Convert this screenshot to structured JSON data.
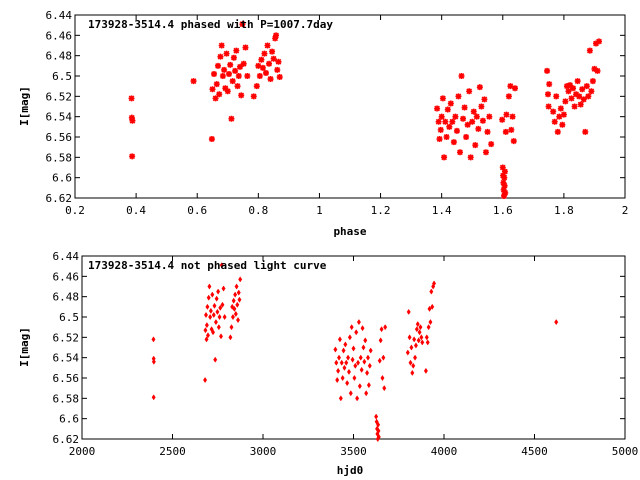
{
  "chart_data": [
    {
      "type": "scatter",
      "title": "173928-3514.4 phased with P=1007.7day",
      "xlabel": "phase",
      "ylabel": "I[mag]",
      "xlim": [
        0.2,
        2.0
      ],
      "ylim": [
        6.62,
        6.44
      ],
      "y_inverted": true,
      "grid": false,
      "marker_color": "#ff0000",
      "xticks": [
        "0.2",
        "0.4",
        "0.6",
        "0.8",
        "1",
        "1.2",
        "1.4",
        "1.6",
        "1.8",
        "2"
      ],
      "yticks": [
        "6.44",
        "6.46",
        "6.48",
        "6.5",
        "6.52",
        "6.54",
        "6.56",
        "6.58",
        "6.6",
        "6.62"
      ],
      "points": [
        [
          0.385,
          6.522
        ],
        [
          0.386,
          6.541
        ],
        [
          0.388,
          6.544
        ],
        [
          0.387,
          6.579
        ],
        [
          0.588,
          6.505
        ],
        [
          0.648,
          6.562
        ],
        [
          0.65,
          6.513
        ],
        [
          0.655,
          6.498
        ],
        [
          0.66,
          6.522
        ],
        [
          0.664,
          6.508
        ],
        [
          0.668,
          6.49
        ],
        [
          0.672,
          6.518
        ],
        [
          0.676,
          6.481
        ],
        [
          0.68,
          6.47
        ],
        [
          0.684,
          6.5
        ],
        [
          0.688,
          6.494
        ],
        [
          0.692,
          6.512
        ],
        [
          0.696,
          6.478
        ],
        [
          0.7,
          6.515
        ],
        [
          0.704,
          6.498
        ],
        [
          0.708,
          6.489
        ],
        [
          0.712,
          6.542
        ],
        [
          0.716,
          6.505
        ],
        [
          0.72,
          6.482
        ],
        [
          0.724,
          6.495
        ],
        [
          0.728,
          6.475
        ],
        [
          0.732,
          6.51
        ],
        [
          0.736,
          6.5
        ],
        [
          0.74,
          6.491
        ],
        [
          0.744,
          6.519
        ],
        [
          0.748,
          6.449
        ],
        [
          0.752,
          6.488
        ],
        [
          0.758,
          6.472
        ],
        [
          0.764,
          6.5
        ],
        [
          0.785,
          6.52
        ],
        [
          0.795,
          6.51
        ],
        [
          0.8,
          6.49
        ],
        [
          0.805,
          6.5
        ],
        [
          0.81,
          6.484
        ],
        [
          0.815,
          6.492
        ],
        [
          0.82,
          6.478
        ],
        [
          0.825,
          6.497
        ],
        [
          0.83,
          6.47
        ],
        [
          0.835,
          6.488
        ],
        [
          0.84,
          6.503
        ],
        [
          0.845,
          6.476
        ],
        [
          0.85,
          6.483
        ],
        [
          0.855,
          6.463
        ],
        [
          0.858,
          6.46
        ],
        [
          0.862,
          6.494
        ],
        [
          0.866,
          6.486
        ],
        [
          0.87,
          6.501
        ],
        [
          1.385,
          6.532
        ],
        [
          1.39,
          6.545
        ],
        [
          1.393,
          6.562
        ],
        [
          1.397,
          6.553
        ],
        [
          1.4,
          6.54
        ],
        [
          1.404,
          6.522
        ],
        [
          1.408,
          6.58
        ],
        [
          1.412,
          6.545
        ],
        [
          1.416,
          6.56
        ],
        [
          1.42,
          6.533
        ],
        [
          1.425,
          6.55
        ],
        [
          1.43,
          6.527
        ],
        [
          1.435,
          6.545
        ],
        [
          1.44,
          6.565
        ],
        [
          1.445,
          6.54
        ],
        [
          1.45,
          6.554
        ],
        [
          1.455,
          6.52
        ],
        [
          1.46,
          6.575
        ],
        [
          1.465,
          6.5
        ],
        [
          1.47,
          6.542
        ],
        [
          1.475,
          6.531
        ],
        [
          1.48,
          6.56
        ],
        [
          1.485,
          6.548
        ],
        [
          1.49,
          6.515
        ],
        [
          1.495,
          6.58
        ],
        [
          1.5,
          6.545
        ],
        [
          1.505,
          6.535
        ],
        [
          1.51,
          6.568
        ],
        [
          1.515,
          6.54
        ],
        [
          1.52,
          6.552
        ],
        [
          1.525,
          6.511
        ],
        [
          1.53,
          6.53
        ],
        [
          1.535,
          6.544
        ],
        [
          1.54,
          6.523
        ],
        [
          1.545,
          6.575
        ],
        [
          1.55,
          6.555
        ],
        [
          1.556,
          6.54
        ],
        [
          1.562,
          6.567
        ],
        [
          1.598,
          6.543
        ],
        [
          1.6,
          6.59
        ],
        [
          1.601,
          6.598
        ],
        [
          1.602,
          6.605
        ],
        [
          1.603,
          6.612
        ],
        [
          1.604,
          6.618
        ],
        [
          1.605,
          6.6
        ],
        [
          1.606,
          6.608
        ],
        [
          1.607,
          6.594
        ],
        [
          1.608,
          6.615
        ],
        [
          1.61,
          6.555
        ],
        [
          1.612,
          6.538
        ],
        [
          1.62,
          6.52
        ],
        [
          1.625,
          6.51
        ],
        [
          1.628,
          6.553
        ],
        [
          1.632,
          6.54
        ],
        [
          1.636,
          6.564
        ],
        [
          1.64,
          6.512
        ],
        [
          1.745,
          6.495
        ],
        [
          1.748,
          6.518
        ],
        [
          1.75,
          6.53
        ],
        [
          1.752,
          6.508
        ],
        [
          1.765,
          6.535
        ],
        [
          1.77,
          6.545
        ],
        [
          1.775,
          6.52
        ],
        [
          1.78,
          6.555
        ],
        [
          1.785,
          6.54
        ],
        [
          1.79,
          6.532
        ],
        [
          1.795,
          6.548
        ],
        [
          1.8,
          6.538
        ],
        [
          1.805,
          6.525
        ],
        [
          1.81,
          6.51
        ],
        [
          1.815,
          6.515
        ],
        [
          1.82,
          6.509
        ],
        [
          1.825,
          6.522
        ],
        [
          1.83,
          6.512
        ],
        [
          1.835,
          6.53
        ],
        [
          1.84,
          6.518
        ],
        [
          1.845,
          6.505
        ],
        [
          1.85,
          6.52
        ],
        [
          1.855,
          6.528
        ],
        [
          1.86,
          6.513
        ],
        [
          1.865,
          6.523
        ],
        [
          1.87,
          6.555
        ],
        [
          1.875,
          6.51
        ],
        [
          1.88,
          6.52
        ],
        [
          1.885,
          6.475
        ],
        [
          1.89,
          6.515
        ],
        [
          1.895,
          6.505
        ],
        [
          1.9,
          6.493
        ],
        [
          1.905,
          6.468
        ],
        [
          1.91,
          6.495
        ],
        [
          1.915,
          6.466
        ]
      ]
    },
    {
      "type": "scatter",
      "title": "173928-3514.4 not phased light curve",
      "xlabel": "hjd0",
      "ylabel": "I[mag]",
      "xlim": [
        2000,
        5000
      ],
      "ylim": [
        6.62,
        6.44
      ],
      "y_inverted": true,
      "grid": false,
      "marker_color": "#ff0000",
      "xticks": [
        "2000",
        "2500",
        "3000",
        "3500",
        "4000",
        "4500",
        "5000"
      ],
      "yticks": [
        "6.44",
        "6.46",
        "6.48",
        "6.5",
        "6.52",
        "6.54",
        "6.56",
        "6.58",
        "6.6",
        "6.62"
      ],
      "points": [
        [
          2395,
          6.522
        ],
        [
          2396,
          6.541
        ],
        [
          2397,
          6.544
        ],
        [
          2396,
          6.579
        ],
        [
          2680,
          6.562
        ],
        [
          2682,
          6.513
        ],
        [
          2685,
          6.498
        ],
        [
          2688,
          6.522
        ],
        [
          2690,
          6.508
        ],
        [
          2693,
          6.49
        ],
        [
          2696,
          6.518
        ],
        [
          2700,
          6.481
        ],
        [
          2704,
          6.47
        ],
        [
          2708,
          6.5
        ],
        [
          2712,
          6.494
        ],
        [
          2716,
          6.512
        ],
        [
          2720,
          6.478
        ],
        [
          2724,
          6.515
        ],
        [
          2728,
          6.498
        ],
        [
          2732,
          6.489
        ],
        [
          2736,
          6.542
        ],
        [
          2740,
          6.505
        ],
        [
          2744,
          6.482
        ],
        [
          2748,
          6.495
        ],
        [
          2752,
          6.475
        ],
        [
          2756,
          6.51
        ],
        [
          2760,
          6.5
        ],
        [
          2764,
          6.491
        ],
        [
          2768,
          6.519
        ],
        [
          2772,
          6.449
        ],
        [
          2776,
          6.488
        ],
        [
          2782,
          6.472
        ],
        [
          2788,
          6.5
        ],
        [
          2820,
          6.52
        ],
        [
          2826,
          6.51
        ],
        [
          2830,
          6.49
        ],
        [
          2834,
          6.5
        ],
        [
          2838,
          6.484
        ],
        [
          2842,
          6.492
        ],
        [
          2846,
          6.478
        ],
        [
          2850,
          6.497
        ],
        [
          2854,
          6.47
        ],
        [
          2858,
          6.488
        ],
        [
          2862,
          6.503
        ],
        [
          2866,
          6.476
        ],
        [
          2870,
          6.483
        ],
        [
          2874,
          6.463
        ],
        [
          3400,
          6.532
        ],
        [
          3405,
          6.545
        ],
        [
          3410,
          6.562
        ],
        [
          3415,
          6.553
        ],
        [
          3420,
          6.54
        ],
        [
          3425,
          6.522
        ],
        [
          3430,
          6.58
        ],
        [
          3435,
          6.545
        ],
        [
          3440,
          6.56
        ],
        [
          3445,
          6.533
        ],
        [
          3450,
          6.55
        ],
        [
          3455,
          6.527
        ],
        [
          3460,
          6.545
        ],
        [
          3465,
          6.565
        ],
        [
          3470,
          6.54
        ],
        [
          3475,
          6.554
        ],
        [
          3480,
          6.52
        ],
        [
          3485,
          6.575
        ],
        [
          3490,
          6.51
        ],
        [
          3495,
          6.542
        ],
        [
          3500,
          6.531
        ],
        [
          3505,
          6.56
        ],
        [
          3510,
          6.548
        ],
        [
          3515,
          6.515
        ],
        [
          3520,
          6.58
        ],
        [
          3525,
          6.545
        ],
        [
          3530,
          6.505
        ],
        [
          3535,
          6.568
        ],
        [
          3540,
          6.54
        ],
        [
          3545,
          6.552
        ],
        [
          3550,
          6.511
        ],
        [
          3555,
          6.53
        ],
        [
          3560,
          6.544
        ],
        [
          3565,
          6.523
        ],
        [
          3570,
          6.575
        ],
        [
          3575,
          6.555
        ],
        [
          3580,
          6.54
        ],
        [
          3585,
          6.567
        ],
        [
          3590,
          6.548
        ],
        [
          3595,
          6.533
        ],
        [
          3625,
          6.598
        ],
        [
          3628,
          6.603
        ],
        [
          3630,
          6.61
        ],
        [
          3632,
          6.615
        ],
        [
          3634,
          6.62
        ],
        [
          3636,
          6.606
        ],
        [
          3638,
          6.612
        ],
        [
          3640,
          6.618
        ],
        [
          3645,
          6.543
        ],
        [
          3650,
          6.523
        ],
        [
          3655,
          6.512
        ],
        [
          3660,
          6.56
        ],
        [
          3665,
          6.54
        ],
        [
          3670,
          6.57
        ],
        [
          3675,
          6.51
        ],
        [
          3800,
          6.535
        ],
        [
          3805,
          6.495
        ],
        [
          3810,
          6.52
        ],
        [
          3815,
          6.545
        ],
        [
          3820,
          6.53
        ],
        [
          3825,
          6.555
        ],
        [
          3830,
          6.548
        ],
        [
          3835,
          6.522
        ],
        [
          3840,
          6.54
        ],
        [
          3845,
          6.528
        ],
        [
          3850,
          6.512
        ],
        [
          3855,
          6.507
        ],
        [
          3860,
          6.523
        ],
        [
          3865,
          6.515
        ],
        [
          3870,
          6.51
        ],
        [
          3875,
          6.52
        ],
        [
          3880,
          6.525
        ],
        [
          3900,
          6.553
        ],
        [
          3905,
          6.52
        ],
        [
          3910,
          6.525
        ],
        [
          3915,
          6.51
        ],
        [
          3920,
          6.492
        ],
        [
          3925,
          6.505
        ],
        [
          3930,
          6.475
        ],
        [
          3935,
          6.49
        ],
        [
          3940,
          6.47
        ],
        [
          3945,
          6.467
        ],
        [
          4620,
          6.505
        ]
      ]
    }
  ]
}
